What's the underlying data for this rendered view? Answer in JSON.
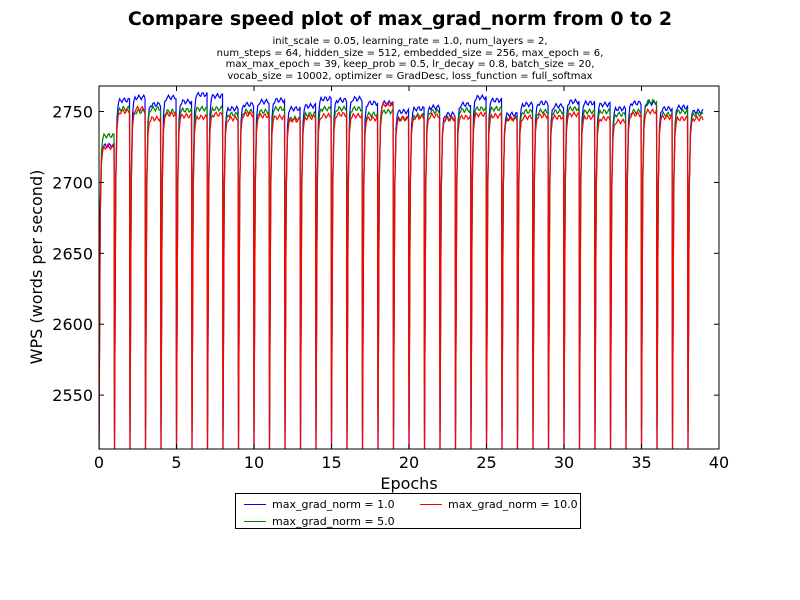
{
  "chart_data": {
    "type": "line",
    "title": "Compare speed plot of max_grad_norm from 0 to 2",
    "subtitle_lines": [
      "init_scale = 0.05, learning_rate = 1.0, num_layers = 2,",
      "num_steps = 64, hidden_size = 512, embedded_size = 256, max_epoch = 6,",
      "max_max_epoch = 39, keep_prob = 0.5, lr_decay = 0.8, batch_size = 20,",
      "vocab_size = 10002, optimizer = GradDesc, loss_function = full_softmax"
    ],
    "xlabel": "Epochs",
    "ylabel": "WPS (words per second)",
    "xlim": [
      0,
      40
    ],
    "ylim": [
      2512,
      2768
    ],
    "xticks": [
      "0",
      "5",
      "10",
      "15",
      "20",
      "25",
      "30",
      "35",
      "40"
    ],
    "yticks": [
      "2550",
      "2600",
      "2650",
      "2700",
      "2750"
    ],
    "grid": false,
    "legend_position": "bottom-center",
    "epochs": 39,
    "series": [
      {
        "name": "max_grad_norm = 1.0",
        "color": "#0000ff",
        "epoch_start": 2512,
        "epoch_plateau": [
          2726,
          2758,
          2760,
          2755,
          2760,
          2757,
          2762,
          2761,
          2752,
          2755,
          2757,
          2758,
          2752,
          2754,
          2759,
          2758,
          2759,
          2756,
          2756,
          2750,
          2752,
          2753,
          2748,
          2755,
          2760,
          2758,
          2748,
          2755,
          2756,
          2754,
          2757,
          2756,
          2755,
          2752,
          2756,
          2756,
          2752,
          2753,
          2750
        ]
      },
      {
        "name": "max_grad_norm = 5.0",
        "color": "#008000",
        "epoch_start": 2525,
        "epoch_plateau": [
          2733,
          2752,
          2750,
          2752,
          2750,
          2751,
          2752,
          2752,
          2748,
          2750,
          2750,
          2752,
          2745,
          2748,
          2752,
          2752,
          2752,
          2748,
          2750,
          2745,
          2747,
          2750,
          2745,
          2751,
          2752,
          2752,
          2745,
          2750,
          2750,
          2750,
          2752,
          2750,
          2750,
          2748,
          2750,
          2757,
          2748,
          2750,
          2748
        ]
      },
      {
        "name": "max_grad_norm = 10.0",
        "color": "#ff0000",
        "epoch_start": 2512,
        "epoch_plateau": [
          2725,
          2750,
          2752,
          2745,
          2748,
          2747,
          2746,
          2748,
          2745,
          2748,
          2747,
          2746,
          2744,
          2746,
          2747,
          2748,
          2747,
          2745,
          2755,
          2745,
          2746,
          2747,
          2745,
          2746,
          2748,
          2747,
          2745,
          2746,
          2747,
          2746,
          2748,
          2746,
          2745,
          2743,
          2748,
          2750,
          2746,
          2745,
          2745
        ]
      }
    ]
  }
}
